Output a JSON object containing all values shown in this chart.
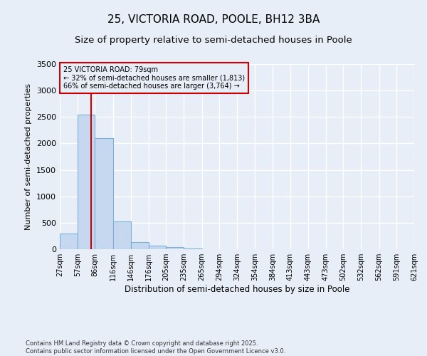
{
  "title": "25, VICTORIA ROAD, POOLE, BH12 3BA",
  "subtitle": "Size of property relative to semi-detached houses in Poole",
  "xlabel": "Distribution of semi-detached houses by size in Poole",
  "ylabel": "Number of semi-detached properties",
  "footnote1": "Contains HM Land Registry data © Crown copyright and database right 2025.",
  "footnote2": "Contains public sector information licensed under the Open Government Licence v3.0.",
  "annotation_title": "25 VICTORIA ROAD: 79sqm",
  "annotation_line2": "← 32% of semi-detached houses are smaller (1,813)",
  "annotation_line3": "66% of semi-detached houses are larger (3,764) →",
  "bin_edges": [
    27,
    57,
    86,
    116,
    146,
    176,
    205,
    235,
    265,
    294,
    324,
    354,
    384,
    413,
    443,
    473,
    502,
    532,
    562,
    591,
    621
  ],
  "bar_heights": [
    300,
    2550,
    2100,
    520,
    140,
    65,
    35,
    20,
    0,
    0,
    0,
    0,
    0,
    0,
    0,
    0,
    0,
    0,
    0,
    0
  ],
  "bar_color": "#c5d8f0",
  "bar_edgecolor": "#7bafd4",
  "vline_x": 79,
  "vline_color": "#cc0000",
  "ylim": [
    0,
    3500
  ],
  "yticks": [
    0,
    500,
    1000,
    1500,
    2000,
    2500,
    3000,
    3500
  ],
  "bg_color": "#e8eef8",
  "grid_color": "#ffffff",
  "annotation_box_color": "#cc0000",
  "title_fontsize": 11,
  "subtitle_fontsize": 9.5
}
